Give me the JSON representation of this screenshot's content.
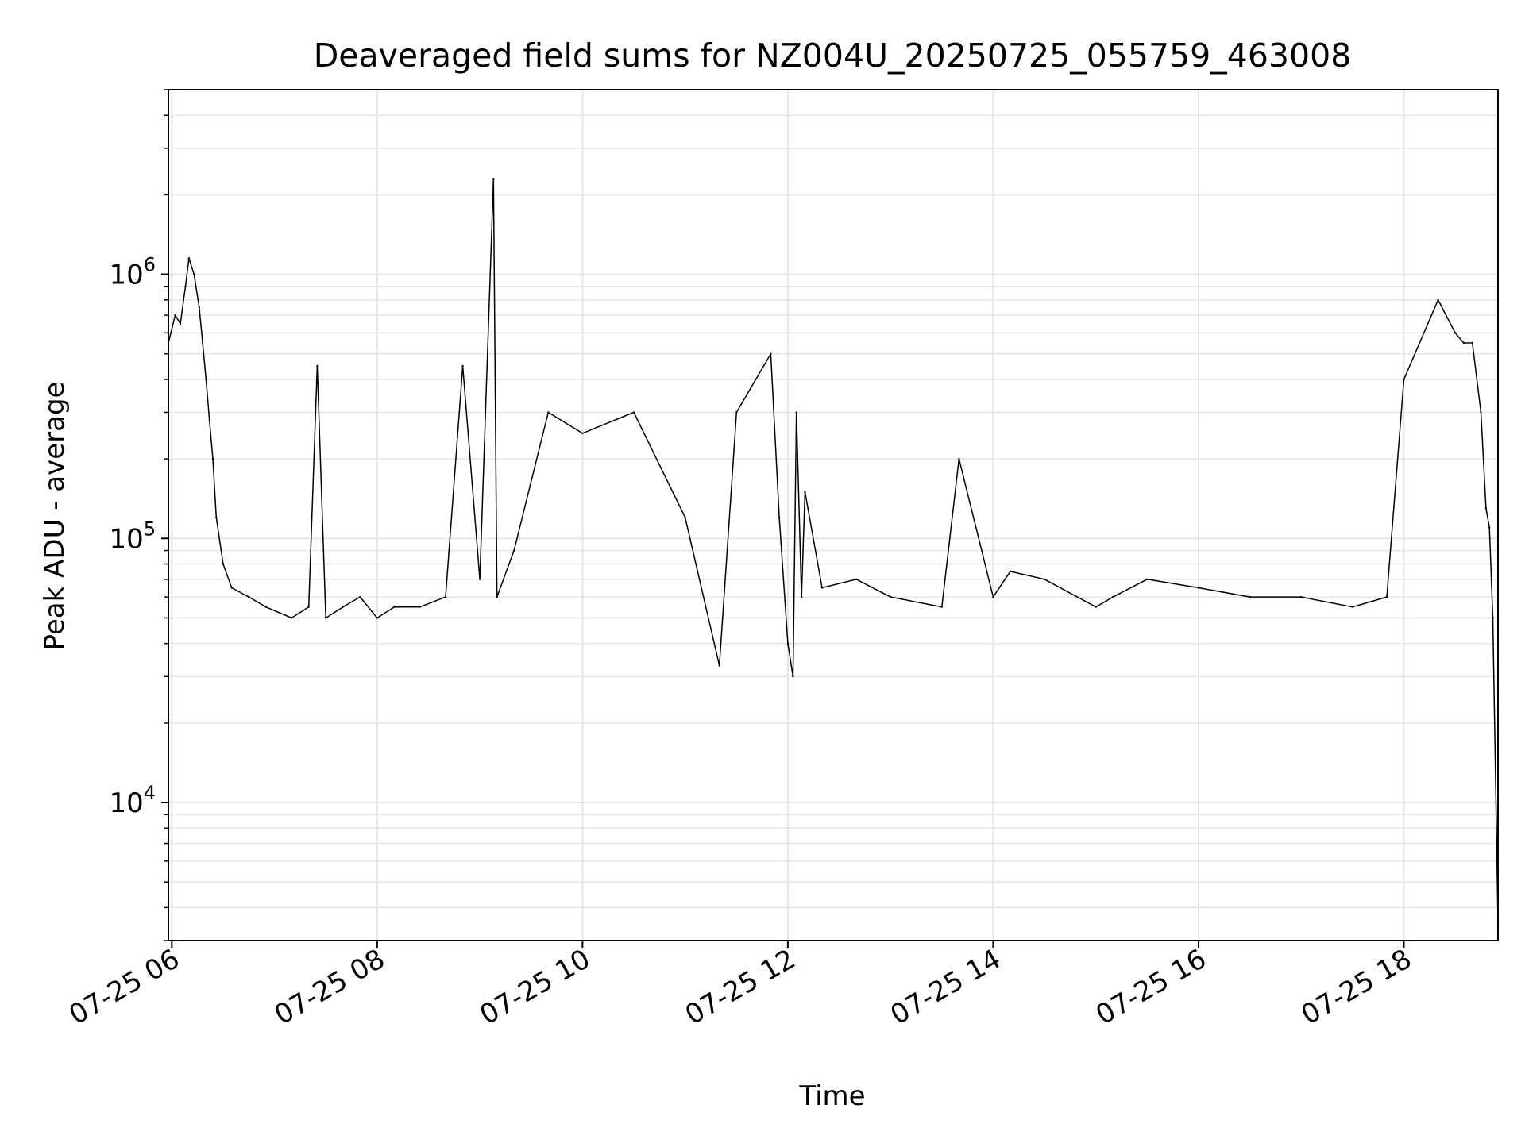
{
  "chart_data": {
    "type": "line",
    "title": "Deaveraged field sums for NZ004U_20250725_055759_463008",
    "xlabel": "Time",
    "ylabel": "Peak ADU - average",
    "yscale": "log",
    "ylim": [
      3000,
      5000000
    ],
    "xlim": [
      "2025-07-25 05:58",
      "2025-07-25 18:55"
    ],
    "grid": true,
    "x_ticks": [
      "07-25 06",
      "07-25 08",
      "07-25 10",
      "07-25 12",
      "07-25 14",
      "07-25 16",
      "07-25 18"
    ],
    "y_ticks": [
      {
        "base": "10",
        "exp": "4",
        "value": 10000
      },
      {
        "base": "10",
        "exp": "5",
        "value": 100000
      },
      {
        "base": "10",
        "exp": "6",
        "value": 1000000
      }
    ],
    "line_color": "#000000",
    "series": [
      {
        "x": [
          "05:58",
          "06:02",
          "06:05",
          "06:08",
          "06:10",
          "06:13",
          "06:16",
          "06:18",
          "06:20",
          "06:22",
          "06:24",
          "06:26",
          "06:30",
          "06:35",
          "06:45",
          "06:55",
          "07:10",
          "07:20",
          "07:25",
          "07:30",
          "07:40",
          "07:50",
          "08:00",
          "08:10",
          "08:25",
          "08:40",
          "08:50",
          "09:00",
          "09:08",
          "09:10",
          "09:20",
          "09:40",
          "10:00",
          "10:30",
          "11:00",
          "11:20",
          "11:30",
          "11:50",
          "11:55",
          "12:00",
          "12:03",
          "12:05",
          "12:08",
          "12:10",
          "12:20",
          "12:40",
          "13:00",
          "13:30",
          "13:40",
          "14:00",
          "14:10",
          "14:30",
          "15:00",
          "15:10",
          "15:30",
          "16:00",
          "16:30",
          "17:00",
          "17:30",
          "17:50",
          "18:00",
          "18:20",
          "18:30",
          "18:35",
          "18:40",
          "18:45",
          "18:48",
          "18:50",
          "18:52",
          "18:55"
        ],
        "y": [
          550000,
          700000,
          650000,
          900000,
          1150000,
          1000000,
          750000,
          550000,
          400000,
          280000,
          200000,
          120000,
          80000,
          65000,
          60000,
          55000,
          50000,
          55000,
          450000,
          50000,
          55000,
          60000,
          50000,
          55000,
          55000,
          60000,
          450000,
          70000,
          2300000,
          60000,
          90000,
          300000,
          250000,
          300000,
          120000,
          33000,
          300000,
          500000,
          120000,
          40000,
          30000,
          300000,
          60000,
          150000,
          65000,
          70000,
          60000,
          55000,
          200000,
          60000,
          75000,
          70000,
          55000,
          60000,
          70000,
          65000,
          60000,
          60000,
          55000,
          60000,
          400000,
          800000,
          600000,
          550000,
          550000,
          300000,
          130000,
          110000,
          50000,
          3500
        ]
      }
    ]
  }
}
